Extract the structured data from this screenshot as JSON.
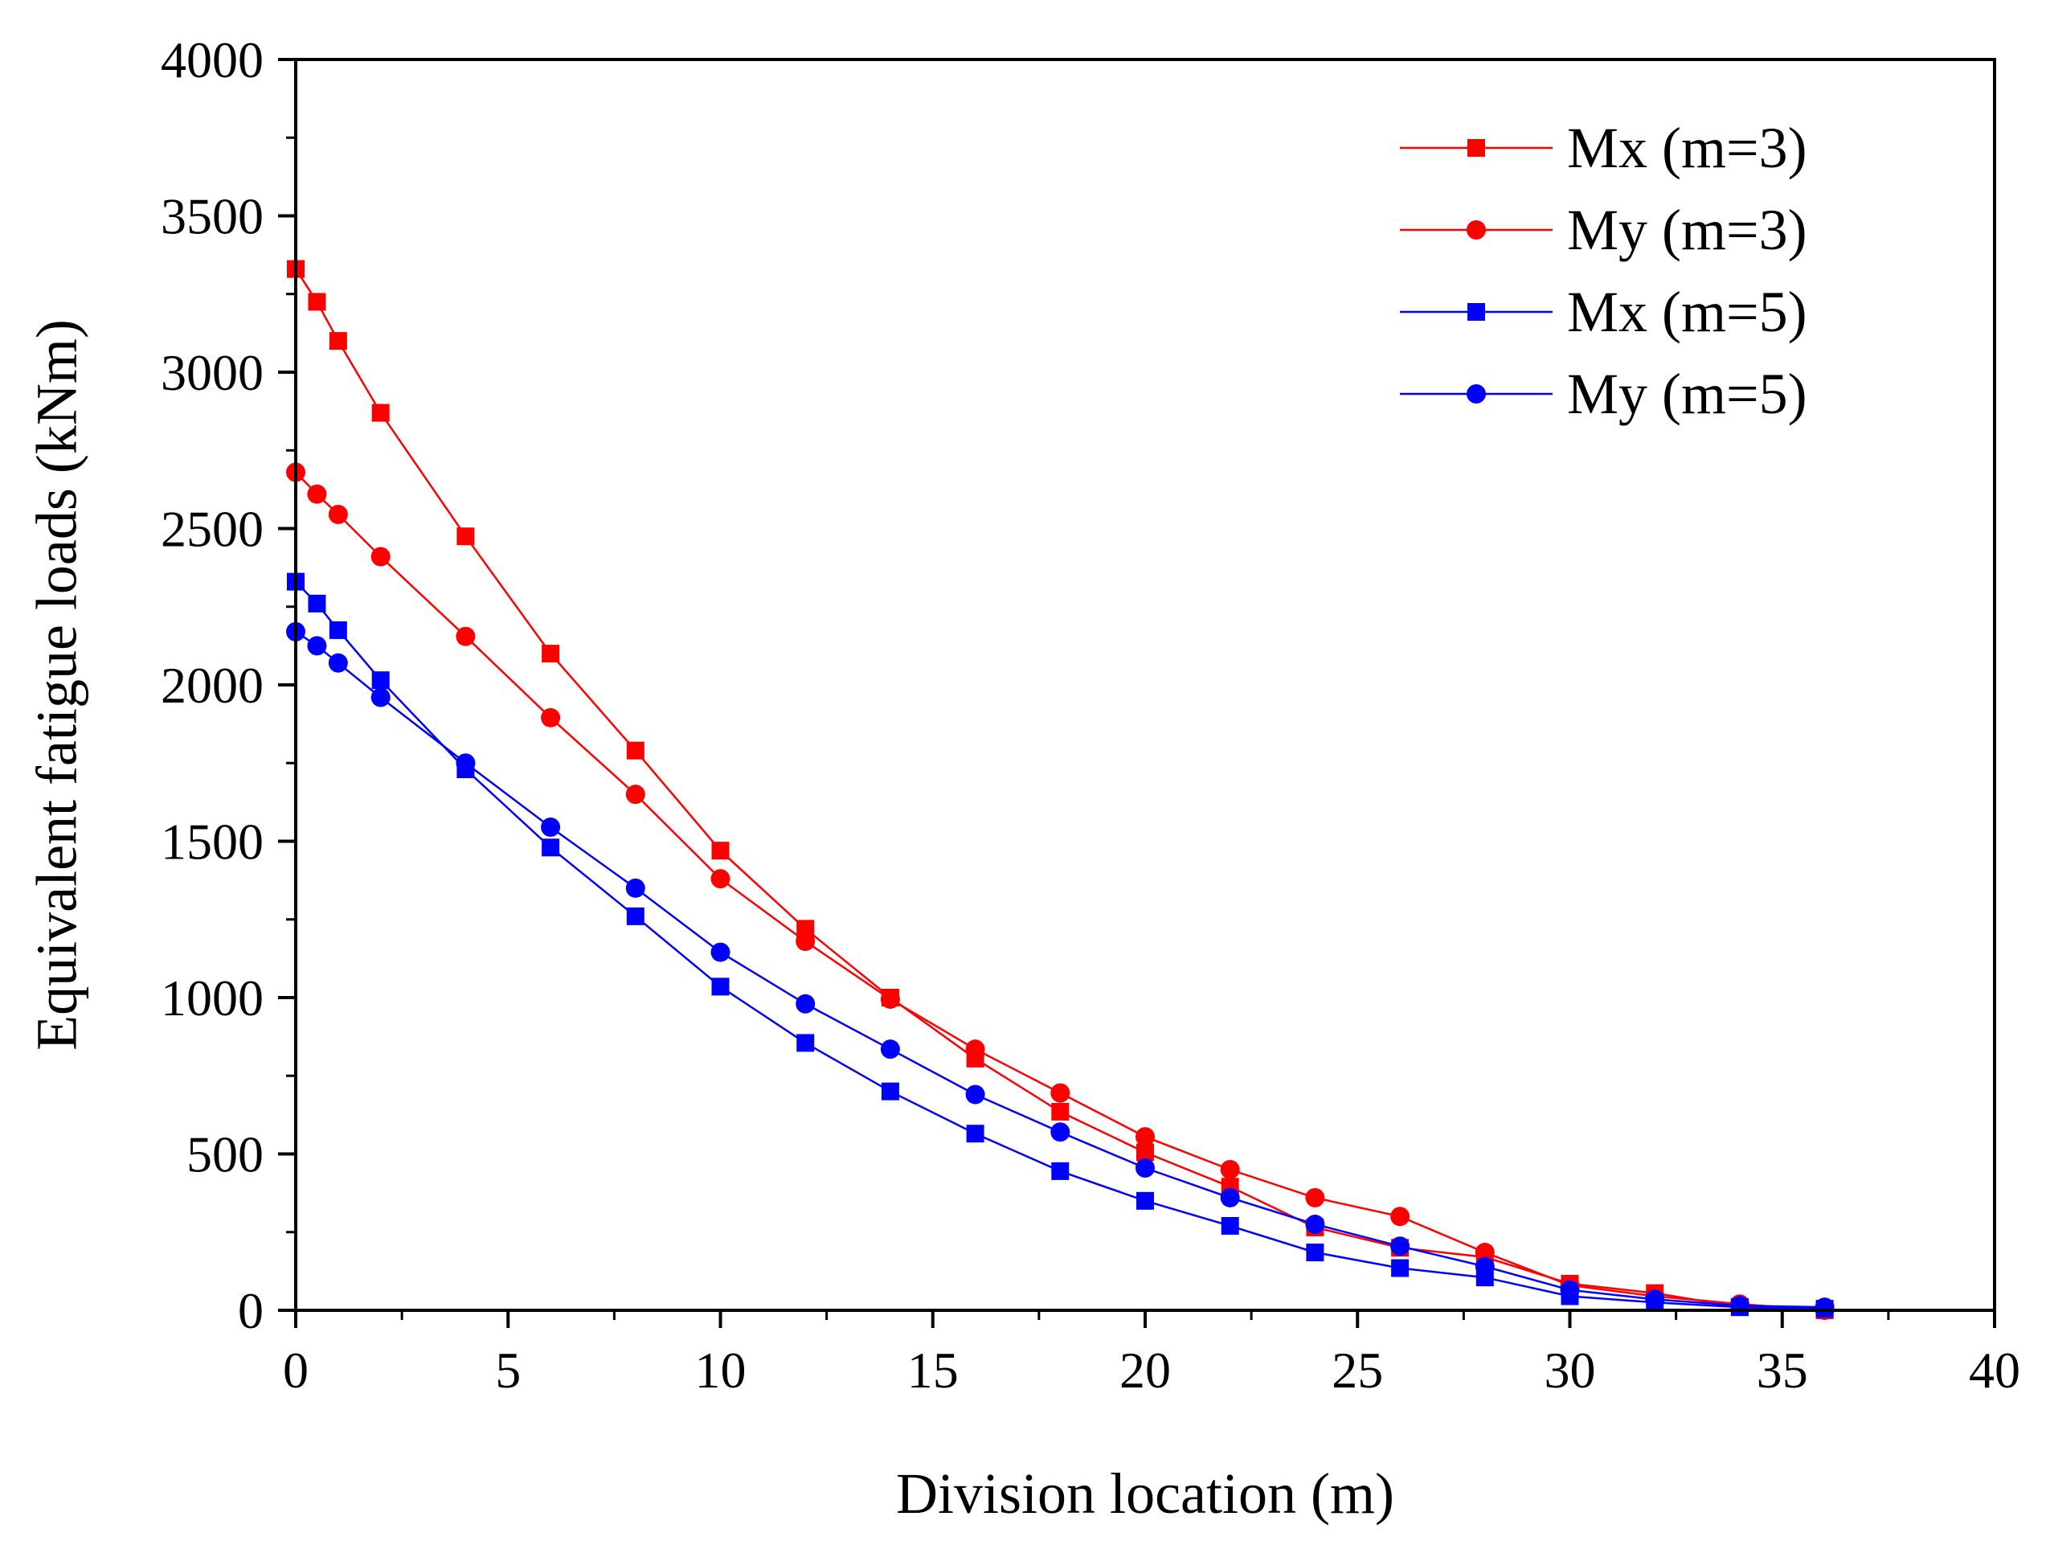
{
  "chart_data": {
    "type": "line",
    "title": "",
    "xlabel": "Division location (m)",
    "ylabel": "Equivalent fatigue loads (kNm)",
    "xlim": [
      0,
      40
    ],
    "ylim": [
      0,
      4000
    ],
    "xticks": [
      0,
      5,
      10,
      15,
      20,
      25,
      30,
      35,
      40
    ],
    "yticks": [
      0,
      500,
      1000,
      1500,
      2000,
      2500,
      3000,
      3500,
      4000
    ],
    "grid": false,
    "legend_position": "top-right",
    "series": [
      {
        "name": "Mx (m=3)",
        "color": "#ff0000",
        "marker": "square",
        "x": [
          0,
          0.5,
          1,
          2,
          4,
          6,
          8,
          10,
          12,
          14,
          16,
          18,
          20,
          22,
          24,
          26,
          28,
          30,
          32,
          34,
          36
        ],
        "values": [
          3330,
          3225,
          3100,
          2870,
          2475,
          2100,
          1790,
          1470,
          1220,
          1000,
          805,
          635,
          505,
          395,
          265,
          200,
          170,
          85,
          55,
          10,
          0
        ]
      },
      {
        "name": "My (m=3)",
        "color": "#ff0000",
        "marker": "circle",
        "x": [
          0,
          0.5,
          1,
          2,
          4,
          6,
          8,
          10,
          12,
          14,
          16,
          18,
          20,
          22,
          24,
          26,
          28,
          30,
          32,
          34,
          36
        ],
        "values": [
          2680,
          2610,
          2545,
          2410,
          2155,
          1895,
          1650,
          1380,
          1180,
          995,
          835,
          695,
          555,
          450,
          360,
          300,
          185,
          80,
          45,
          20,
          0
        ]
      },
      {
        "name": "Mx (m=5)",
        "color": "#0000ff",
        "marker": "square",
        "x": [
          0,
          0.5,
          1,
          2,
          4,
          6,
          8,
          10,
          12,
          14,
          16,
          18,
          20,
          22,
          24,
          26,
          28,
          30,
          32,
          34,
          36
        ],
        "values": [
          2330,
          2260,
          2175,
          2015,
          1730,
          1480,
          1260,
          1035,
          855,
          700,
          565,
          445,
          350,
          270,
          185,
          135,
          105,
          45,
          25,
          10,
          5
        ]
      },
      {
        "name": "My (m=5)",
        "color": "#0000ff",
        "marker": "circle",
        "x": [
          0,
          0.5,
          1,
          2,
          4,
          6,
          8,
          10,
          12,
          14,
          16,
          18,
          20,
          22,
          24,
          26,
          28,
          30,
          32,
          34,
          36
        ],
        "values": [
          2170,
          2125,
          2070,
          1960,
          1750,
          1545,
          1350,
          1145,
          980,
          835,
          690,
          570,
          455,
          360,
          275,
          205,
          140,
          65,
          35,
          15,
          10
        ]
      }
    ]
  }
}
